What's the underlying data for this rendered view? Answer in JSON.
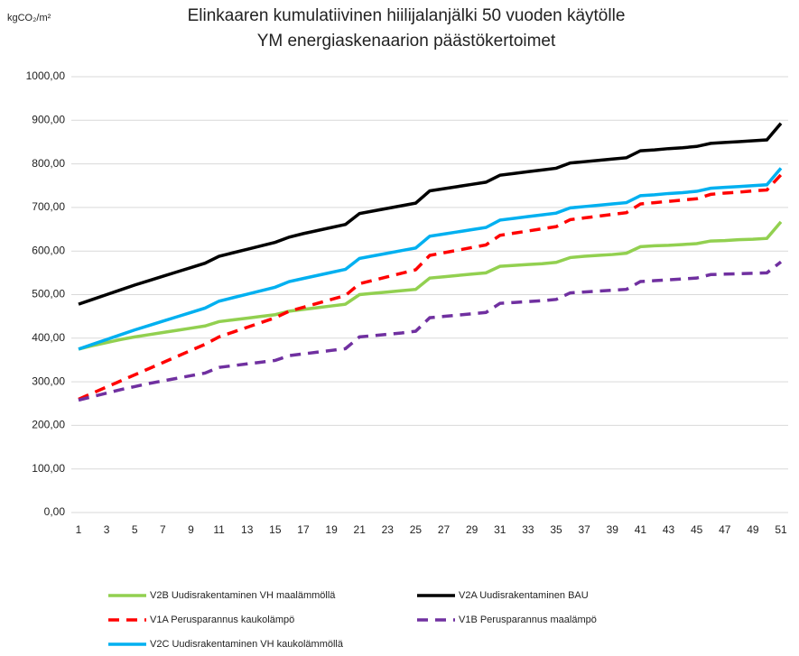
{
  "chart_data": {
    "type": "line",
    "title": [
      "Elinkaaren kumulatiivinen hiilijalanjälki 50 vuoden käytölle",
      "YM energiaskenaarion päästökertoimet"
    ],
    "y_label": "kgCO₂/m²",
    "x": [
      1,
      2,
      3,
      4,
      5,
      6,
      7,
      8,
      9,
      10,
      11,
      12,
      13,
      14,
      15,
      16,
      17,
      18,
      19,
      20,
      21,
      22,
      23,
      24,
      25,
      26,
      27,
      28,
      29,
      30,
      31,
      32,
      33,
      34,
      35,
      36,
      37,
      38,
      39,
      40,
      41,
      42,
      43,
      44,
      45,
      46,
      47,
      48,
      49,
      50,
      51
    ],
    "xlim": [
      1,
      51
    ],
    "xticks": [
      1,
      3,
      5,
      7,
      9,
      11,
      13,
      15,
      17,
      19,
      21,
      23,
      25,
      27,
      29,
      31,
      33,
      35,
      37,
      39,
      41,
      43,
      45,
      47,
      49,
      51
    ],
    "ylim": [
      0,
      1000
    ],
    "yticks": [
      {
        "value": 0,
        "label": "0,00"
      },
      {
        "value": 100,
        "label": "100,00"
      },
      {
        "value": 200,
        "label": "200,00"
      },
      {
        "value": 300,
        "label": "300,00"
      },
      {
        "value": 400,
        "label": "400,00"
      },
      {
        "value": 500,
        "label": "500,00"
      },
      {
        "value": 600,
        "label": "600,00"
      },
      {
        "value": 700,
        "label": "700,00"
      },
      {
        "value": 800,
        "label": "800,00"
      },
      {
        "value": 900,
        "label": "900,00"
      },
      {
        "value": 1000,
        "label": "1000,00"
      }
    ],
    "grid": true,
    "legend": "bottom",
    "series": [
      {
        "name": "V2B Uudisrakentaminen VH maalämmöllä",
        "color": "#92d050",
        "style": "solid",
        "values": [
          375,
          383,
          390,
          397,
          403,
          408,
          413,
          418,
          423,
          428,
          438,
          442,
          446,
          450,
          454,
          462,
          466,
          470,
          474,
          478,
          500,
          503,
          506,
          509,
          512,
          538,
          541,
          544,
          547,
          550,
          565,
          567,
          569,
          571,
          574,
          585,
          588,
          590,
          592,
          595,
          610,
          612,
          613,
          615,
          617,
          623,
          624,
          626,
          627,
          629,
          667
        ]
      },
      {
        "name": "V2A Uudisrakentaminen BAU",
        "color": "#000000",
        "style": "solid",
        "values": [
          478,
          489,
          500,
          511,
          522,
          532,
          542,
          552,
          562,
          572,
          588,
          596,
          604,
          612,
          620,
          632,
          640,
          647,
          654,
          661,
          686,
          692,
          698,
          704,
          710,
          738,
          743,
          748,
          753,
          758,
          774,
          778,
          782,
          786,
          790,
          802,
          805,
          808,
          811,
          814,
          830,
          832,
          835,
          837,
          840,
          847,
          849,
          851,
          853,
          855,
          893
        ]
      },
      {
        "name": "V1A Perusparannus kaukolämpö",
        "color": "#ff0000",
        "style": "dashed",
        "values": [
          260,
          274,
          288,
          302,
          316,
          330,
          344,
          358,
          372,
          386,
          403,
          414,
          425,
          436,
          447,
          462,
          471,
          480,
          489,
          498,
          525,
          533,
          541,
          549,
          557,
          590,
          596,
          602,
          608,
          614,
          636,
          641,
          646,
          651,
          656,
          672,
          676,
          680,
          684,
          688,
          708,
          711,
          714,
          717,
          720,
          730,
          733,
          735,
          738,
          740,
          775
        ]
      },
      {
        "name": "V1B Perusparannus maalämpö",
        "color": "#7030a0",
        "style": "dashed",
        "values": [
          258,
          266,
          274,
          282,
          289,
          296,
          302,
          308,
          314,
          320,
          333,
          337,
          341,
          345,
          349,
          360,
          364,
          368,
          372,
          376,
          403,
          406,
          409,
          412,
          416,
          447,
          450,
          453,
          456,
          459,
          480,
          482,
          484,
          486,
          489,
          504,
          506,
          508,
          510,
          512,
          530,
          532,
          534,
          536,
          538,
          546,
          547,
          548,
          549,
          550,
          575
        ]
      },
      {
        "name": "V2C Uudisrakentaminen VH kaukolämmöllä",
        "color": "#00b0f0",
        "style": "solid",
        "values": [
          375,
          386,
          397,
          408,
          419,
          429,
          439,
          449,
          459,
          469,
          485,
          493,
          501,
          509,
          517,
          530,
          537,
          544,
          551,
          558,
          583,
          589,
          595,
          601,
          607,
          634,
          639,
          644,
          649,
          654,
          671,
          675,
          679,
          683,
          687,
          699,
          702,
          705,
          708,
          711,
          727,
          729,
          732,
          734,
          737,
          744,
          746,
          748,
          750,
          752,
          790
        ]
      }
    ]
  }
}
